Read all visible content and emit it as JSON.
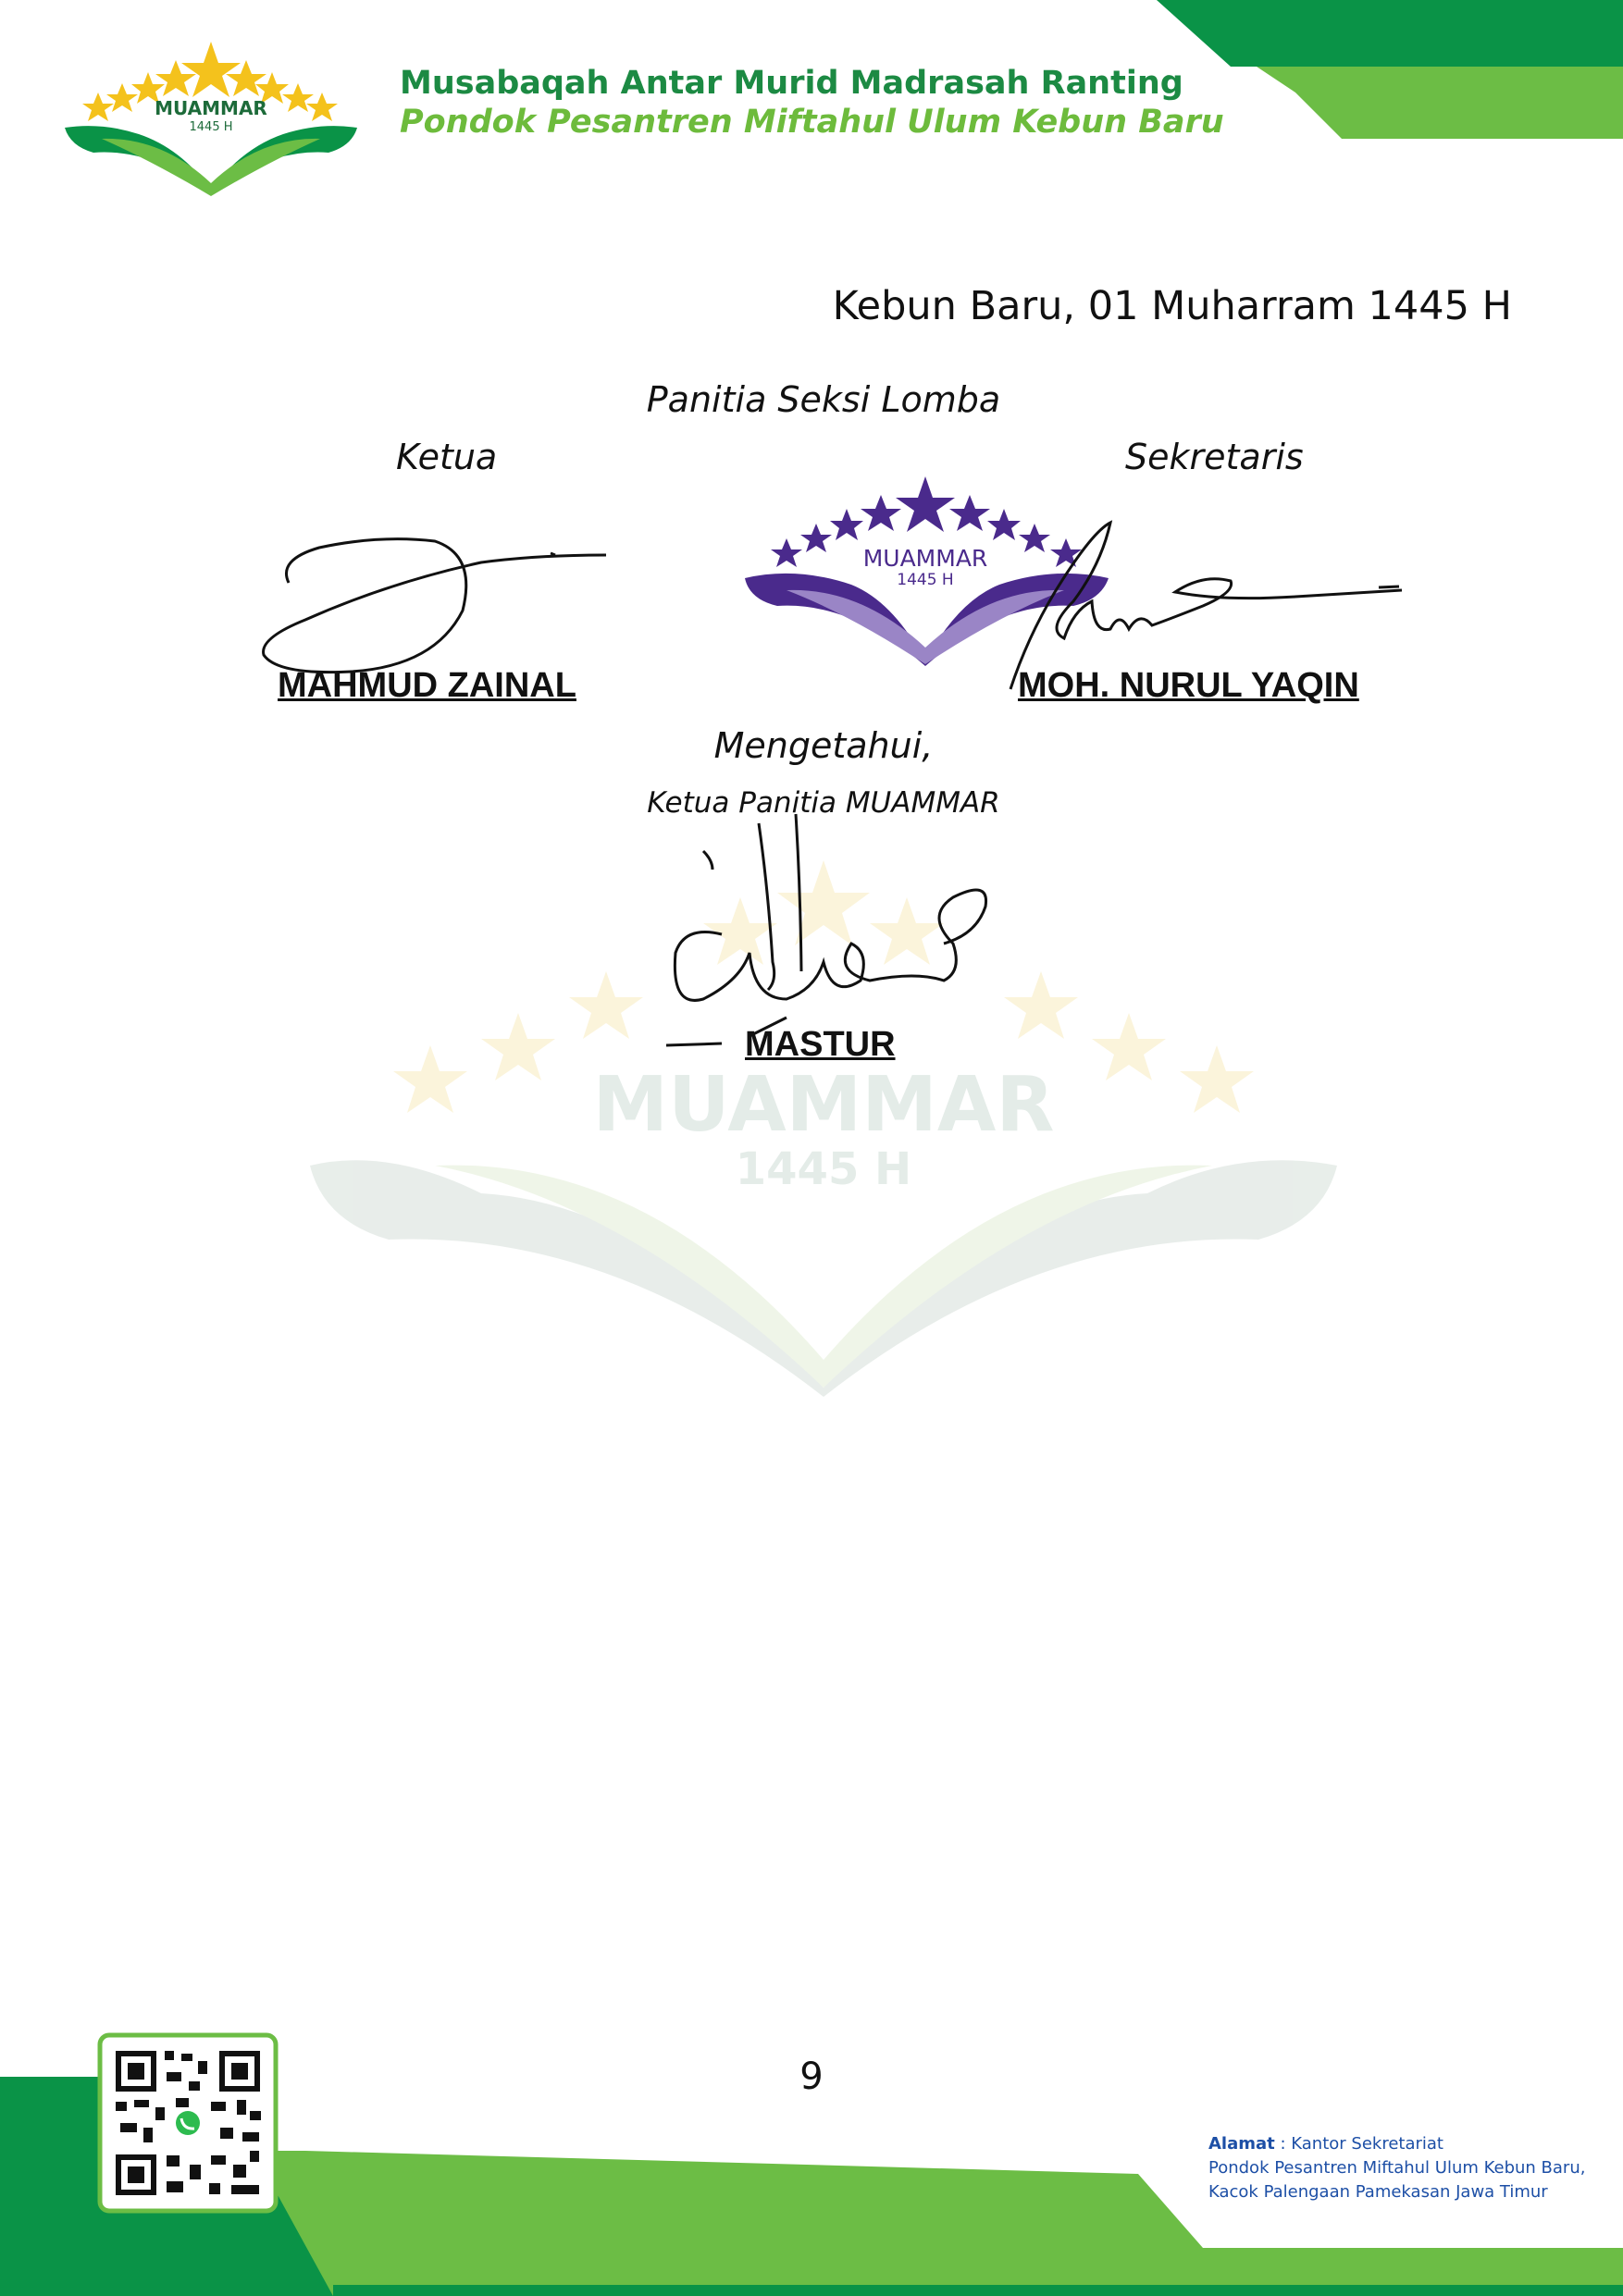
{
  "header": {
    "title": "Musabaqah Antar Murid Madrasah Ranting",
    "subtitle": "Pondok Pesantren Miftahul Ulum Kebun Baru",
    "logo_text": "MUAMMAR",
    "logo_year": "1445 H"
  },
  "document": {
    "date_line": "Kebun Baru, 01 Muharram 1445 H",
    "committee": "Panitia  Seksi  Lomba",
    "left_role": "Ketua",
    "right_role": "Sekretaris",
    "left_name": "MAHMUD  ZAINAL",
    "right_name": "MOH. NURUL  YAQIN",
    "acknowledge": "Mengetahui,",
    "chair_role": "Ketua Panitia MUAMMAR",
    "chair_name": "MASTUR"
  },
  "stamp": {
    "text": "MUAMMAR",
    "year": "1445 H"
  },
  "watermark": {
    "text": "MUAMMAR",
    "year": "1445 H"
  },
  "footer": {
    "page_number": "9",
    "address_label": "Alamat",
    "address_line1": " : Kantor Sekretariat",
    "address_line2": "Pondok Pesantren Miftahul Ulum Kebun Baru,",
    "address_line3": "Kacok Palengaan Pamekasan Jawa Timur"
  },
  "colors": {
    "dark_green": "#0a9347",
    "light_green": "#6cbd45",
    "gold": "#f4c21c",
    "stamp_purple": "#4a2a8c"
  }
}
